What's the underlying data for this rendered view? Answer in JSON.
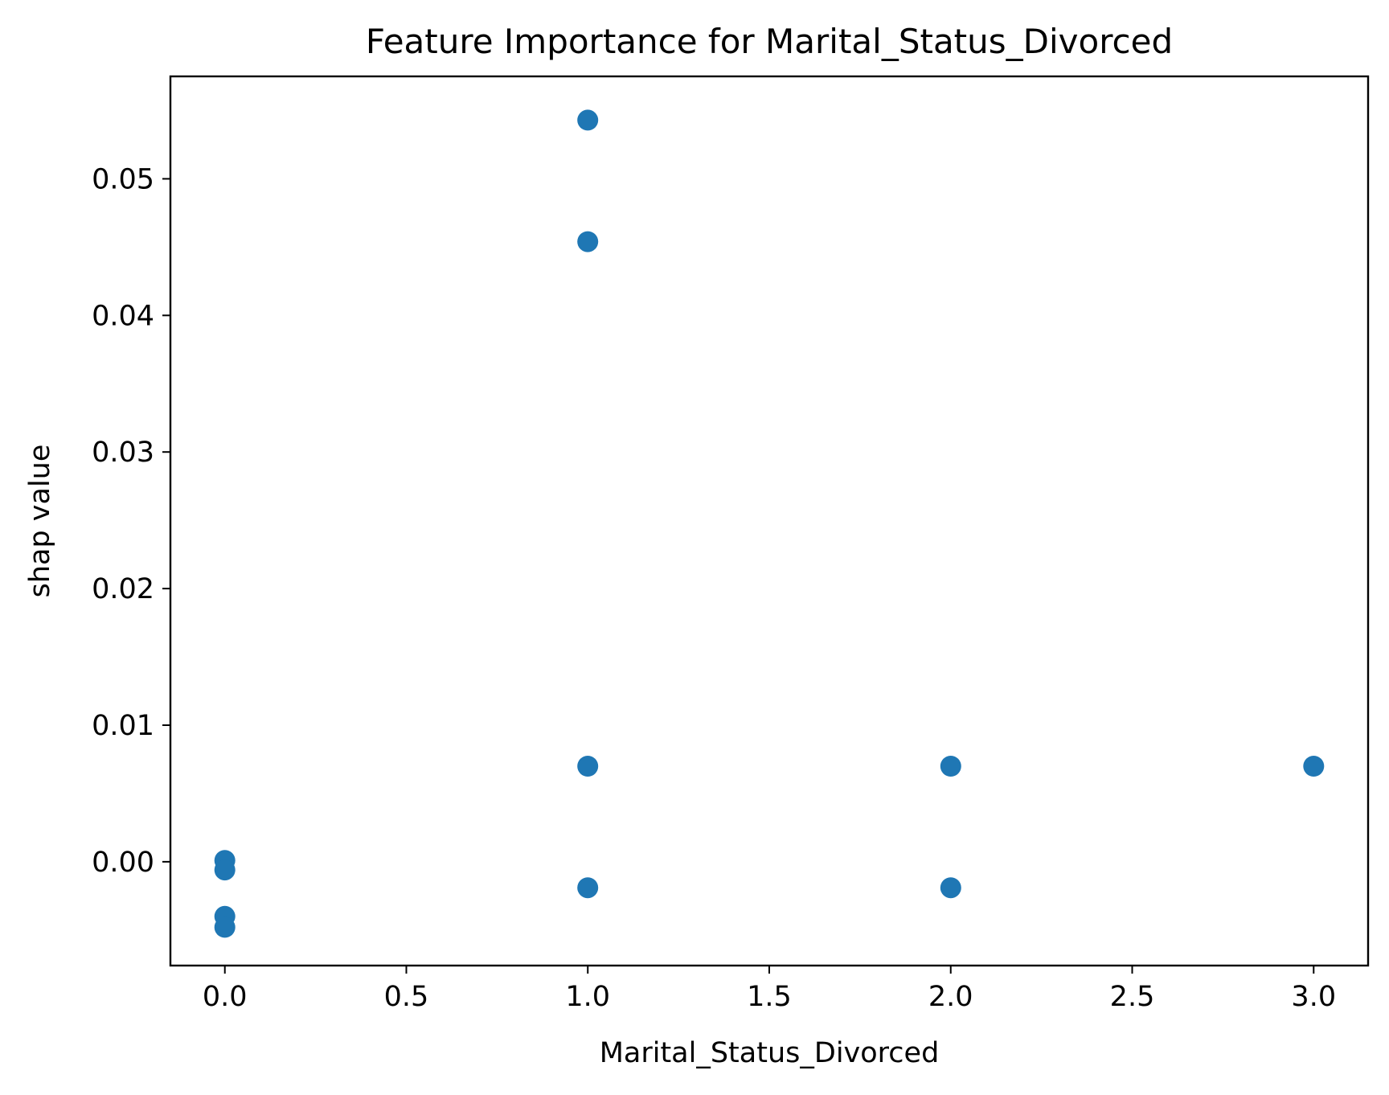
{
  "chart_data": {
    "type": "scatter",
    "title": "Feature Importance for Marital_Status_Divorced",
    "xlabel": "Marital_Status_Divorced",
    "ylabel": "shap value",
    "xlim": [
      -0.15,
      3.15
    ],
    "ylim": [
      -0.0076,
      0.0575
    ],
    "xticks": [
      0.0,
      0.5,
      1.0,
      1.5,
      2.0,
      2.5,
      3.0
    ],
    "xtick_labels": [
      "0.0",
      "0.5",
      "1.0",
      "1.5",
      "2.0",
      "2.5",
      "3.0"
    ],
    "yticks": [
      0.0,
      0.01,
      0.02,
      0.03,
      0.04,
      0.05
    ],
    "ytick_labels": [
      "0.00",
      "0.01",
      "0.02",
      "0.03",
      "0.04",
      "0.05"
    ],
    "grid": false,
    "marker_color": "#1f77b4",
    "points": [
      {
        "x": 0,
        "y": 0.0001
      },
      {
        "x": 0,
        "y": -0.0006
      },
      {
        "x": 0,
        "y": -0.004
      },
      {
        "x": 0,
        "y": -0.0048
      },
      {
        "x": 1,
        "y": 0.0543
      },
      {
        "x": 1,
        "y": 0.0454
      },
      {
        "x": 1,
        "y": 0.007
      },
      {
        "x": 1,
        "y": -0.0019
      },
      {
        "x": 2,
        "y": 0.007
      },
      {
        "x": 2,
        "y": -0.0019
      },
      {
        "x": 3,
        "y": 0.007
      }
    ]
  }
}
